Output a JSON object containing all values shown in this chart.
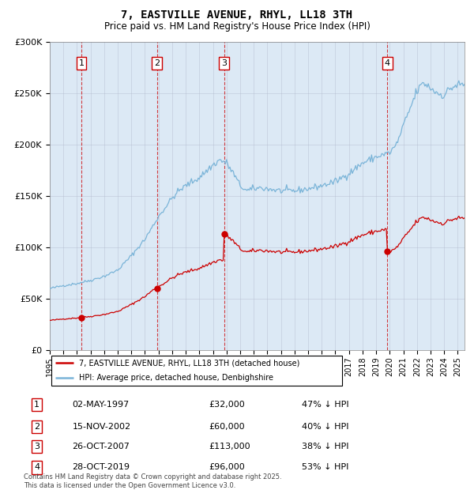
{
  "title": "7, EASTVILLE AVENUE, RHYL, LL18 3TH",
  "subtitle": "Price paid vs. HM Land Registry's House Price Index (HPI)",
  "hpi_color": "#7ab4d8",
  "price_color": "#cc0000",
  "bg_color": "#dce9f5",
  "sale_year_decimals": [
    1997.336,
    2002.874,
    2007.819,
    2019.828
  ],
  "sale_prices": [
    32000,
    60000,
    113000,
    96000
  ],
  "sale_labels": [
    "1",
    "2",
    "3",
    "4"
  ],
  "table_rows": [
    [
      "1",
      "02-MAY-1997",
      "£32,000",
      "47% ↓ HPI"
    ],
    [
      "2",
      "15-NOV-2002",
      "£60,000",
      "40% ↓ HPI"
    ],
    [
      "3",
      "26-OCT-2007",
      "£113,000",
      "38% ↓ HPI"
    ],
    [
      "4",
      "28-OCT-2019",
      "£96,000",
      "53% ↓ HPI"
    ]
  ],
  "footer": "Contains HM Land Registry data © Crown copyright and database right 2025.\nThis data is licensed under the Open Government Licence v3.0.",
  "ylim": [
    0,
    300000
  ],
  "yticks": [
    0,
    50000,
    100000,
    150000,
    200000,
    250000,
    300000
  ],
  "legend_line1": "7, EASTVILLE AVENUE, RHYL, LL18 3TH (detached house)",
  "legend_line2": "HPI: Average price, detached house, Denbighshire",
  "xlim_start": 1995.0,
  "xlim_end": 2025.5,
  "hpi_anchors": {
    "1995.0": 60000,
    "1996.0": 63000,
    "1997.0": 65000,
    "1998.0": 68000,
    "1999.0": 72000,
    "2000.0": 78000,
    "2001.0": 92000,
    "2002.0": 108000,
    "2003.0": 130000,
    "2004.0": 148000,
    "2004.5": 155000,
    "2005.0": 160000,
    "2006.0": 168000,
    "2007.0": 180000,
    "2007.5": 185000,
    "2008.0": 182000,
    "2008.5": 172000,
    "2009.0": 160000,
    "2009.5": 155000,
    "2010.0": 157000,
    "2010.5": 158000,
    "2011.0": 157000,
    "2012.0": 155000,
    "2013.0": 155000,
    "2014.0": 157000,
    "2015.0": 160000,
    "2016.0": 164000,
    "2017.0": 172000,
    "2018.0": 182000,
    "2019.0": 188000,
    "2019.5": 190000,
    "2020.0": 192000,
    "2020.5": 200000,
    "2021.0": 218000,
    "2021.5": 235000,
    "2022.0": 252000,
    "2022.5": 260000,
    "2023.0": 255000,
    "2023.5": 250000,
    "2024.0": 248000,
    "2024.5": 255000,
    "2025.0": 258000
  }
}
